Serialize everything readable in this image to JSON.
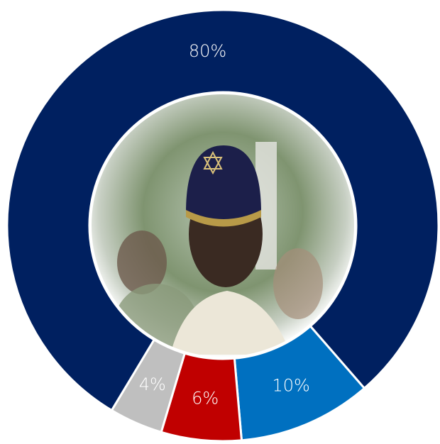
{
  "chart_data": {
    "type": "donut",
    "values": [
      80,
      10,
      6,
      4
    ],
    "value_labels": [
      "80%",
      "10%",
      "6%",
      "4%"
    ],
    "colors": [
      "#002060",
      "#0070c0",
      "#c00000",
      "#bfbfbf"
    ]
  }
}
